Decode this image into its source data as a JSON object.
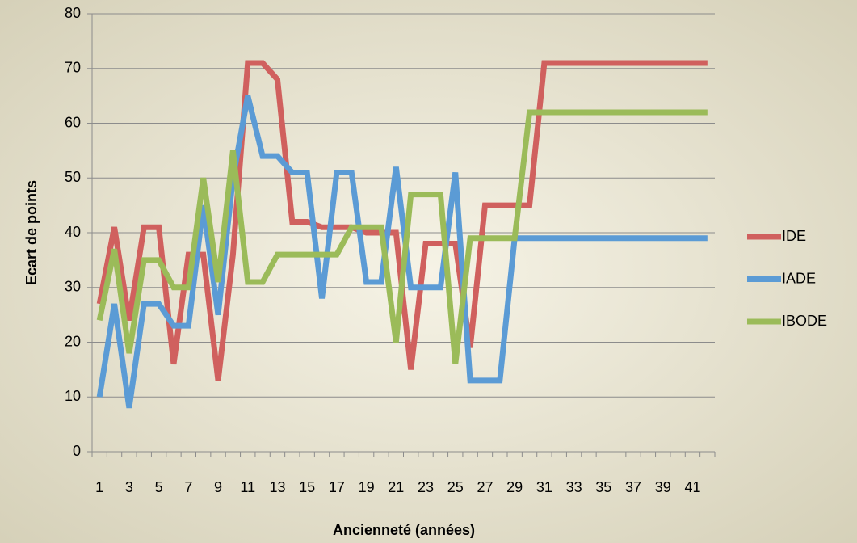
{
  "chart_data": {
    "type": "line",
    "x_label": "Ancienneté (années)",
    "y_label": "Ecart de points",
    "categories": [
      1,
      null,
      3,
      null,
      5,
      null,
      7,
      null,
      9,
      null,
      11,
      null,
      13,
      null,
      15,
      null,
      17,
      null,
      19,
      null,
      21,
      null,
      23,
      null,
      25,
      null,
      27,
      null,
      29,
      null,
      31,
      null,
      33,
      null,
      35,
      null,
      37,
      null,
      39,
      null,
      41,
      null
    ],
    "series": [
      {
        "name": "IDE",
        "color": "#d0605e",
        "values": [
          27,
          41,
          24,
          41,
          41,
          16,
          36,
          36,
          13,
          36,
          71,
          71,
          68,
          42,
          42,
          41,
          41,
          41,
          40,
          40,
          40,
          15,
          38,
          38,
          38,
          19,
          45,
          45,
          45,
          45,
          71,
          71,
          71,
          71,
          71,
          71,
          71,
          71,
          71,
          71,
          71,
          71
        ]
      },
      {
        "name": "IADE",
        "color": "#5b9bd5",
        "values": [
          10,
          27,
          8,
          27,
          27,
          23,
          23,
          45,
          25,
          50,
          65,
          54,
          54,
          51,
          51,
          28,
          51,
          51,
          31,
          31,
          52,
          30,
          30,
          30,
          51,
          13,
          13,
          13,
          39,
          39,
          39,
          39,
          39,
          39,
          39,
          39,
          39,
          39,
          39,
          39,
          39,
          39
        ]
      },
      {
        "name": "IBODE",
        "color": "#9bbb59",
        "values": [
          24,
          37,
          18,
          35,
          35,
          30,
          30,
          50,
          31,
          55,
          31,
          31,
          36,
          36,
          36,
          36,
          36,
          41,
          41,
          41,
          20,
          47,
          47,
          47,
          16,
          39,
          39,
          39,
          39,
          62,
          62,
          62,
          62,
          62,
          62,
          62,
          62,
          62,
          62,
          62,
          62,
          62
        ]
      }
    ],
    "ylim": [
      0,
      80
    ],
    "yticks": [
      0,
      10,
      20,
      30,
      40,
      50,
      60,
      70,
      80
    ],
    "grid": true,
    "legend": "right"
  }
}
